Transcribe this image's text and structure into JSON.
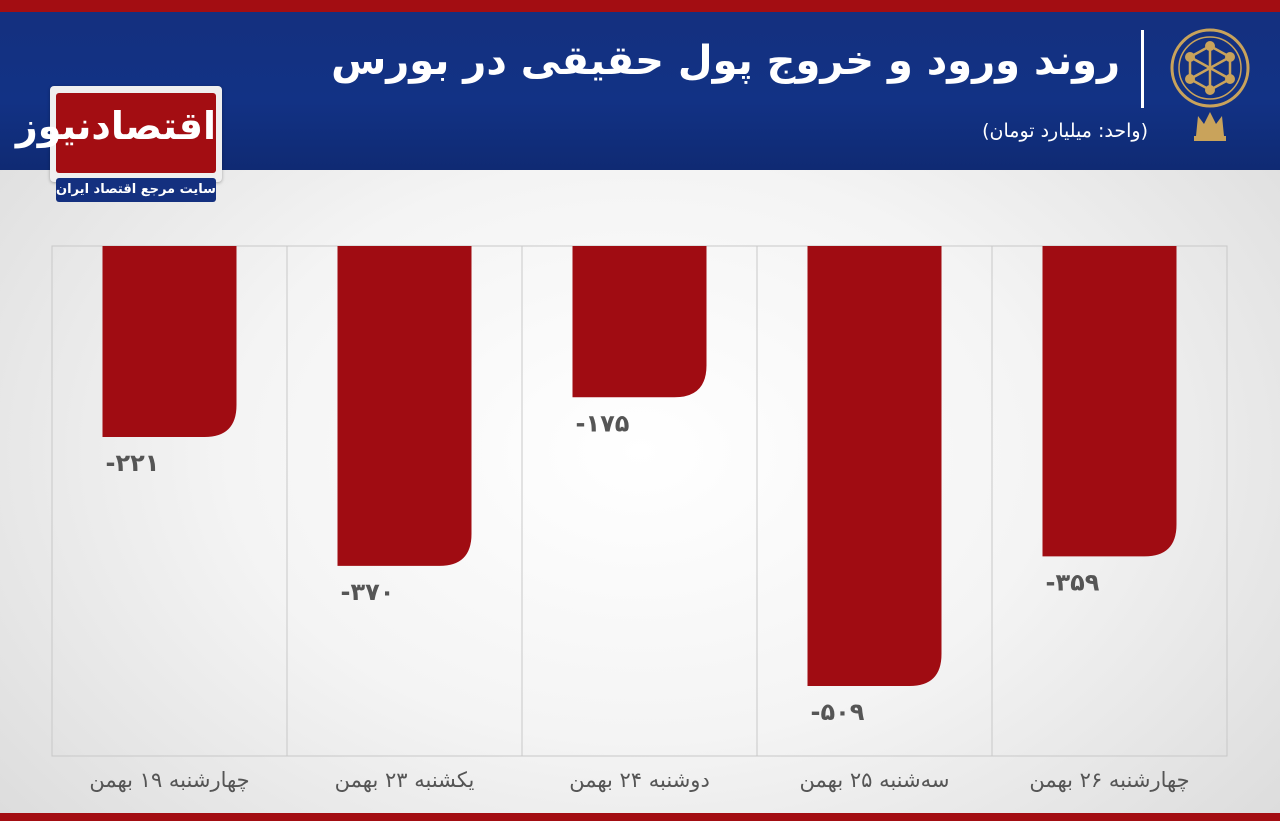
{
  "header": {
    "title": "روند ورود و خروج پول حقیقی در بورس",
    "unit": "(واحد: میلیارد تومان)"
  },
  "logo": {
    "name": "اقتصادنیوز",
    "tagline": "سایت مرجع اقتصاد ایران"
  },
  "colors": {
    "header_bg": "#14307f",
    "accent_red": "#a30d12",
    "bar": "#a00c12",
    "label_text": "#555555"
  },
  "chart_data": {
    "type": "bar",
    "orientation": "vertical-downward",
    "categories": [
      "چهارشنبه ۱۹ بهمن",
      "یکشنبه ۲۳ بهمن",
      "دوشنبه ۲۴ بهمن",
      "سه‌شنبه ۲۵ بهمن",
      "چهارشنبه ۲۶ بهمن"
    ],
    "values": [
      -221,
      -370,
      -175,
      -509,
      -359
    ],
    "value_labels": [
      "-۲۲۱",
      "-۳۷۰",
      "-۱۷۵",
      "-۵۰۹",
      "-۳۵۹"
    ],
    "title": "روند ورود و خروج پول حقیقی در بورس",
    "ylabel": "",
    "xlabel": "",
    "ylim": [
      -590,
      0
    ],
    "grid": "vertical separators",
    "legend": "none"
  }
}
